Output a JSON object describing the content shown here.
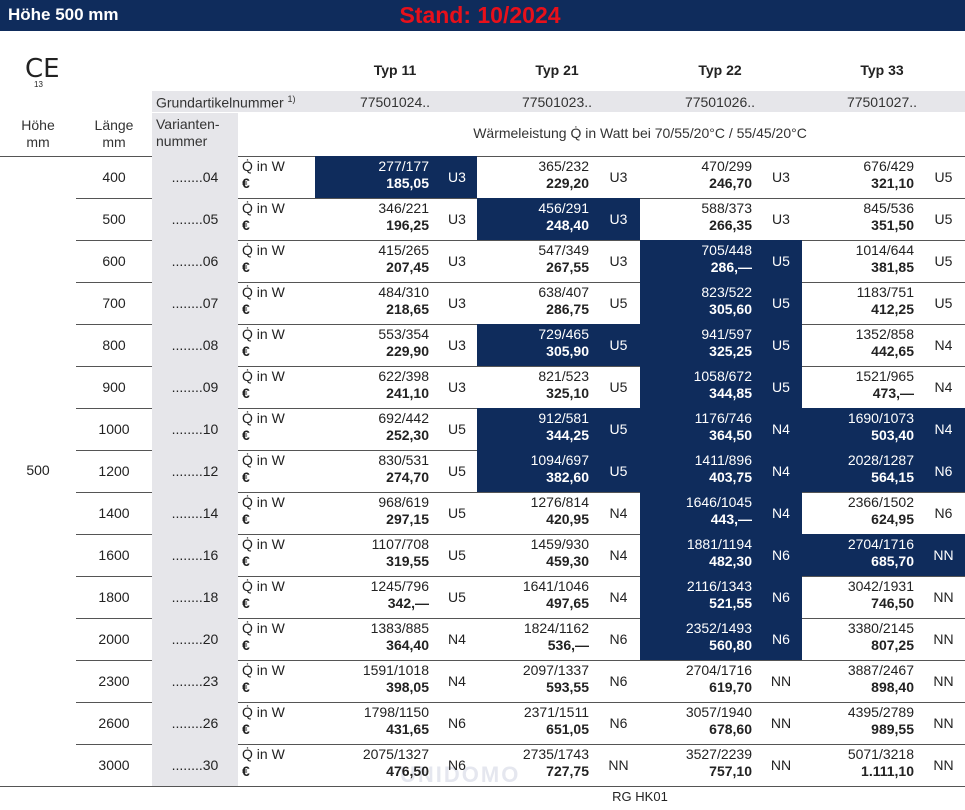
{
  "header": {
    "title": "Höhe 500 mm",
    "stand": "Stand: 10/2024",
    "ce": "CE",
    "ce_number": "13"
  },
  "types": [
    "Typ 11",
    "Typ 21",
    "Typ 22",
    "Typ 33"
  ],
  "article": {
    "label": "Grundartikelnummer",
    "note": "1)",
    "numbers": [
      "77501024..",
      "77501023..",
      "77501026..",
      "77501027.."
    ]
  },
  "columns": {
    "height": "Höhe\nmm",
    "length": "Länge\nmm",
    "variant": "Varianten-\nnummer",
    "heat": "Wärmeleistung Q̇ in Watt bei 70/55/20°C / 55/45/20°C"
  },
  "height_value": "500",
  "power_label": "Q̇ in W",
  "price_label": "€",
  "rows": [
    {
      "length": "400",
      "variant": "........04",
      "cells": [
        [
          "277/177",
          "185,05",
          "U3",
          true
        ],
        [
          "365/232",
          "229,20",
          "U3",
          false
        ],
        [
          "470/299",
          "246,70",
          "U3",
          false
        ],
        [
          "676/429",
          "321,10",
          "U5",
          false
        ]
      ]
    },
    {
      "length": "500",
      "variant": "........05",
      "cells": [
        [
          "346/221",
          "196,25",
          "U3",
          false
        ],
        [
          "456/291",
          "248,40",
          "U3",
          true
        ],
        [
          "588/373",
          "266,35",
          "U3",
          false
        ],
        [
          "845/536",
          "351,50",
          "U5",
          false
        ]
      ]
    },
    {
      "length": "600",
      "variant": "........06",
      "cells": [
        [
          "415/265",
          "207,45",
          "U3",
          false
        ],
        [
          "547/349",
          "267,55",
          "U3",
          false
        ],
        [
          "705/448",
          "286,—",
          "U5",
          true
        ],
        [
          "1014/644",
          "381,85",
          "U5",
          false
        ]
      ]
    },
    {
      "length": "700",
      "variant": "........07",
      "cells": [
        [
          "484/310",
          "218,65",
          "U3",
          false
        ],
        [
          "638/407",
          "286,75",
          "U5",
          false
        ],
        [
          "823/522",
          "305,60",
          "U5",
          true
        ],
        [
          "1183/751",
          "412,25",
          "U5",
          false
        ]
      ]
    },
    {
      "length": "800",
      "variant": "........08",
      "cells": [
        [
          "553/354",
          "229,90",
          "U3",
          false
        ],
        [
          "729/465",
          "305,90",
          "U5",
          true
        ],
        [
          "941/597",
          "325,25",
          "U5",
          true
        ],
        [
          "1352/858",
          "442,65",
          "N4",
          false
        ]
      ]
    },
    {
      "length": "900",
      "variant": "........09",
      "cells": [
        [
          "622/398",
          "241,10",
          "U3",
          false
        ],
        [
          "821/523",
          "325,10",
          "U5",
          false
        ],
        [
          "1058/672",
          "344,85",
          "U5",
          true
        ],
        [
          "1521/965",
          "473,—",
          "N4",
          false
        ]
      ]
    },
    {
      "length": "1000",
      "variant": "........10",
      "cells": [
        [
          "692/442",
          "252,30",
          "U5",
          false
        ],
        [
          "912/581",
          "344,25",
          "U5",
          true
        ],
        [
          "1176/746",
          "364,50",
          "N4",
          true
        ],
        [
          "1690/1073",
          "503,40",
          "N4",
          true
        ]
      ]
    },
    {
      "length": "1200",
      "variant": "........12",
      "cells": [
        [
          "830/531",
          "274,70",
          "U5",
          false
        ],
        [
          "1094/697",
          "382,60",
          "U5",
          true
        ],
        [
          "1411/896",
          "403,75",
          "N4",
          true
        ],
        [
          "2028/1287",
          "564,15",
          "N6",
          true
        ]
      ]
    },
    {
      "length": "1400",
      "variant": "........14",
      "cells": [
        [
          "968/619",
          "297,15",
          "U5",
          false
        ],
        [
          "1276/814",
          "420,95",
          "N4",
          false
        ],
        [
          "1646/1045",
          "443,—",
          "N4",
          true
        ],
        [
          "2366/1502",
          "624,95",
          "N6",
          false
        ]
      ]
    },
    {
      "length": "1600",
      "variant": "........16",
      "cells": [
        [
          "1107/708",
          "319,55",
          "U5",
          false
        ],
        [
          "1459/930",
          "459,30",
          "N4",
          false
        ],
        [
          "1881/1194",
          "482,30",
          "N6",
          true
        ],
        [
          "2704/1716",
          "685,70",
          "NN",
          true
        ]
      ]
    },
    {
      "length": "1800",
      "variant": "........18",
      "cells": [
        [
          "1245/796",
          "342,—",
          "U5",
          false
        ],
        [
          "1641/1046",
          "497,65",
          "N4",
          false
        ],
        [
          "2116/1343",
          "521,55",
          "N6",
          true
        ],
        [
          "3042/1931",
          "746,50",
          "NN",
          false
        ]
      ]
    },
    {
      "length": "2000",
      "variant": "........20",
      "cells": [
        [
          "1383/885",
          "364,40",
          "N4",
          false
        ],
        [
          "1824/1162",
          "536,—",
          "N6",
          false
        ],
        [
          "2352/1493",
          "560,80",
          "N6",
          true
        ],
        [
          "3380/2145",
          "807,25",
          "NN",
          false
        ]
      ]
    },
    {
      "length": "2300",
      "variant": "........23",
      "cells": [
        [
          "1591/1018",
          "398,05",
          "N4",
          false
        ],
        [
          "2097/1337",
          "593,55",
          "N6",
          false
        ],
        [
          "2704/1716",
          "619,70",
          "NN",
          false
        ],
        [
          "3887/2467",
          "898,40",
          "NN",
          false
        ]
      ]
    },
    {
      "length": "2600",
      "variant": "........26",
      "cells": [
        [
          "1798/1150",
          "431,65",
          "N6",
          false
        ],
        [
          "2371/1511",
          "651,05",
          "N6",
          false
        ],
        [
          "3057/1940",
          "678,60",
          "NN",
          false
        ],
        [
          "4395/2789",
          "989,55",
          "NN",
          false
        ]
      ]
    },
    {
      "length": "3000",
      "variant": "........30",
      "cells": [
        [
          "2075/1327",
          "476,50",
          "N6",
          false
        ],
        [
          "2735/1743",
          "727,75",
          "NN",
          false
        ],
        [
          "3527/2239",
          "757,10",
          "NN",
          false
        ],
        [
          "5071/3218",
          "1.111,10",
          "NN",
          false
        ]
      ]
    }
  ],
  "watermark": "UNIDOMO",
  "footer": "RG HK01"
}
